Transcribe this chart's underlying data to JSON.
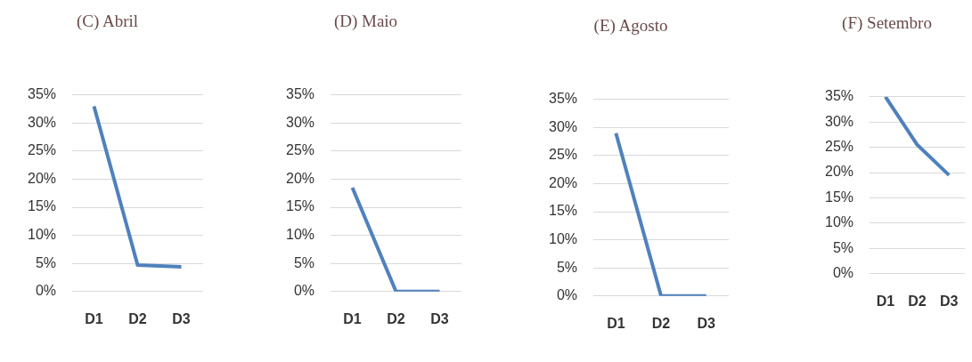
{
  "chart_data": [
    {
      "type": "line",
      "title": "(C) Abril",
      "categories": [
        "D1",
        "D2",
        "D3"
      ],
      "series": [
        {
          "color": "#4f81bd",
          "values": [
            33,
            4.7,
            4.4
          ]
        }
      ],
      "ylim": [
        0,
        35
      ],
      "yticks": [
        {
          "value": 0,
          "label": "0%"
        },
        {
          "value": 5,
          "label": "5%"
        },
        {
          "value": 10,
          "label": "10%"
        },
        {
          "value": 15,
          "label": "15%"
        },
        {
          "value": 20,
          "label": "20%"
        },
        {
          "value": 25,
          "label": "25%"
        },
        {
          "value": 30,
          "label": "30%"
        },
        {
          "value": 35,
          "label": "35%"
        }
      ],
      "grid": "y",
      "legend": false,
      "marker": "none"
    },
    {
      "type": "line",
      "title": "(D) Maio",
      "categories": [
        "D1",
        "D2",
        "D3"
      ],
      "series": [
        {
          "color": "#4f81bd",
          "values": [
            18.5,
            0,
            0
          ]
        }
      ],
      "ylim": [
        0,
        35
      ],
      "yticks": [
        {
          "value": 0,
          "label": "0%"
        },
        {
          "value": 5,
          "label": "5%"
        },
        {
          "value": 10,
          "label": "10%"
        },
        {
          "value": 15,
          "label": "15%"
        },
        {
          "value": 20,
          "label": "20%"
        },
        {
          "value": 25,
          "label": "25%"
        },
        {
          "value": 30,
          "label": "30%"
        },
        {
          "value": 35,
          "label": "35%"
        }
      ],
      "grid": "y",
      "legend": false,
      "marker": "none"
    },
    {
      "type": "line",
      "title": "(E) Agosto",
      "categories": [
        "D1",
        "D2",
        "D3"
      ],
      "series": [
        {
          "color": "#4f81bd",
          "values": [
            29,
            0,
            0
          ]
        }
      ],
      "ylim": [
        0,
        35
      ],
      "yticks": [
        {
          "value": 0,
          "label": "0%"
        },
        {
          "value": 5,
          "label": "5%"
        },
        {
          "value": 10,
          "label": "10%"
        },
        {
          "value": 15,
          "label": "15%"
        },
        {
          "value": 20,
          "label": "20%"
        },
        {
          "value": 25,
          "label": "25%"
        },
        {
          "value": 30,
          "label": "30%"
        },
        {
          "value": 35,
          "label": "35%"
        }
      ],
      "grid": "y",
      "legend": false,
      "marker": "none"
    },
    {
      "type": "line",
      "title": "(F) Setembro",
      "categories": [
        "D1",
        "D2",
        "D3"
      ],
      "series": [
        {
          "color": "#4f81bd",
          "values": [
            35,
            25.5,
            19.5
          ]
        }
      ],
      "ylim": [
        0,
        35
      ],
      "yticks": [
        {
          "value": 0,
          "label": "0%"
        },
        {
          "value": 5,
          "label": "5%"
        },
        {
          "value": 10,
          "label": "10%"
        },
        {
          "value": 15,
          "label": "15%"
        },
        {
          "value": 20,
          "label": "20%"
        },
        {
          "value": 25,
          "label": "25%"
        },
        {
          "value": 30,
          "label": "30%"
        },
        {
          "value": 35,
          "label": "35%"
        }
      ],
      "grid": "y",
      "legend": false,
      "marker": "none"
    }
  ]
}
